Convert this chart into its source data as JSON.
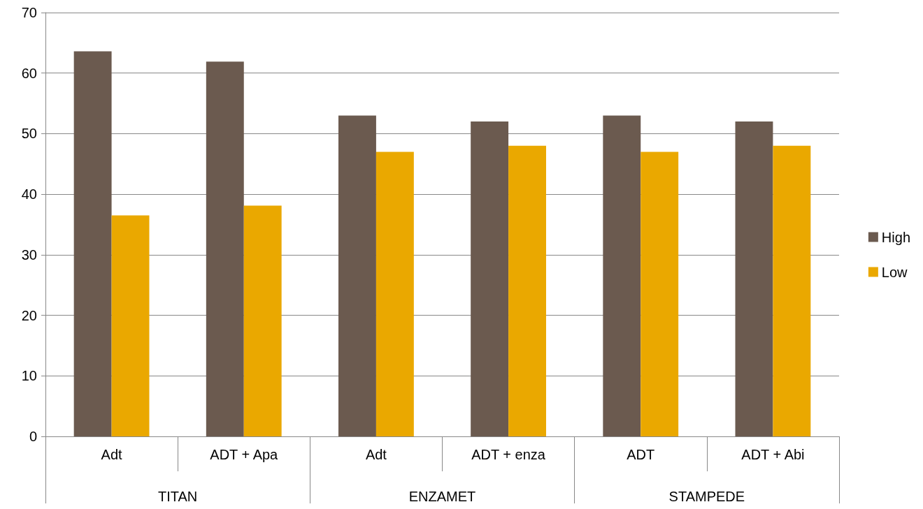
{
  "chart_data": {
    "type": "bar",
    "categories": [
      "Adt",
      "ADT + Apa",
      "Adt",
      "ADT + enza",
      "ADT",
      "ADT + Abi"
    ],
    "annotations": [
      "TITAN",
      "ENZAMET",
      "STAMPEDE"
    ],
    "series": [
      {
        "name": "High",
        "color": "#6b5a4f",
        "values": [
          63.6,
          61.9,
          53,
          52,
          53,
          52
        ]
      },
      {
        "name": "Low",
        "color": "#eaa800",
        "values": [
          36.5,
          38.1,
          47,
          48,
          47,
          48
        ]
      }
    ],
    "ylim": [
      0,
      70
    ],
    "yticks": [
      0,
      10,
      20,
      30,
      40,
      50,
      60,
      70
    ],
    "grid": "y",
    "legend": "right"
  }
}
